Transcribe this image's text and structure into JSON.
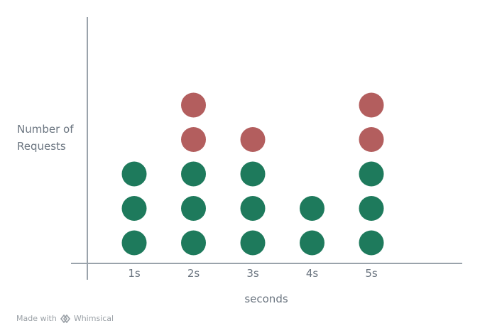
{
  "chart_data": {
    "type": "scatter",
    "style": "dot-stack",
    "xlabel": "seconds",
    "ylabel": "Number of\nRequests",
    "categories": [
      "1s",
      "2s",
      "3s",
      "4s",
      "5s"
    ],
    "series": [
      {
        "values": [
          3,
          3,
          3,
          2,
          3
        ],
        "color": "#1e7a5c"
      },
      {
        "values": [
          0,
          2,
          1,
          0,
          2
        ],
        "color": "#b35e5e"
      }
    ],
    "axis_color": "#9aa3ab",
    "grid": false
  },
  "footer": {
    "prefix": "Made with",
    "brand": "Whimsical",
    "icon": "whimsical-logo-icon"
  }
}
